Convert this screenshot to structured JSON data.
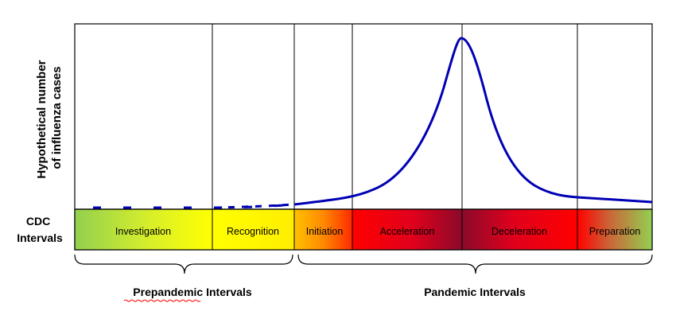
{
  "y_axis_label": [
    "Hypothetical number",
    "of influenza cases"
  ],
  "cdc_label": [
    "CDC",
    "Intervals"
  ],
  "intervals": [
    {
      "label": "Investigation"
    },
    {
      "label": "Recognition"
    },
    {
      "label": "Initiation"
    },
    {
      "label": "Acceleration"
    },
    {
      "label": "Deceleration"
    },
    {
      "label": "Preparation"
    }
  ],
  "groups": [
    {
      "label": "Prepandemic Intervals",
      "spelling_flag": "Prepandemic"
    },
    {
      "label": "Pandemic Intervals"
    }
  ],
  "colors": {
    "curve": "#0000b4",
    "green": "#92d050",
    "yellow": "#ffff00",
    "orange": "#ffc000",
    "red": "#ff0000",
    "dark_red": "#8b0a2a",
    "spell_underline": "#ff0000"
  }
}
